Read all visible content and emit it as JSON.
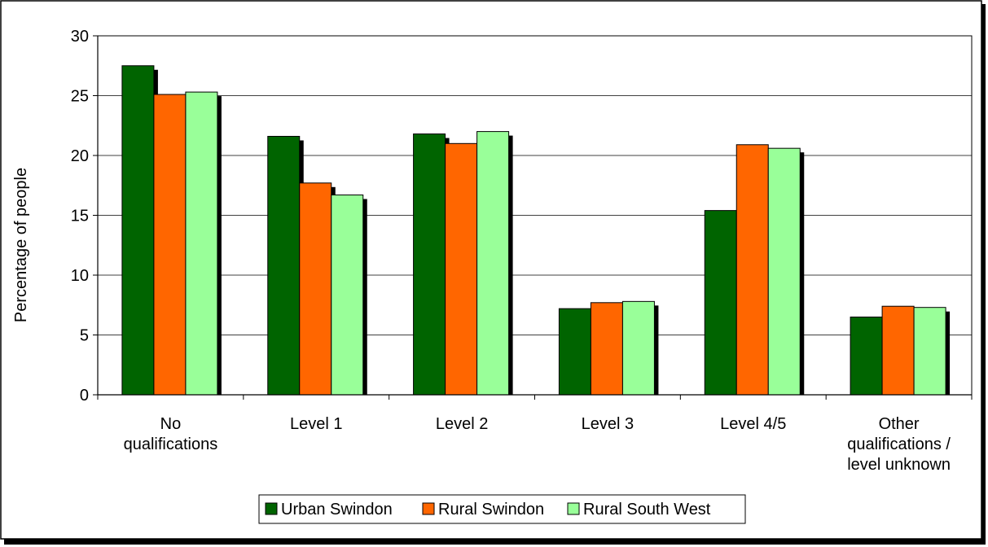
{
  "chart_data": {
    "type": "bar",
    "title": "",
    "xlabel": "",
    "ylabel": "Percentage of people",
    "ylim": [
      0,
      30
    ],
    "yticks": [
      0,
      5,
      10,
      15,
      20,
      25,
      30
    ],
    "grid": true,
    "legend_position": "bottom",
    "categories": [
      [
        "No",
        "qualifications"
      ],
      [
        "Level 1"
      ],
      [
        "Level 2"
      ],
      [
        "Level 3"
      ],
      [
        "Level 4/5"
      ],
      [
        "Other",
        "qualifications /",
        "level unknown"
      ]
    ],
    "series": [
      {
        "name": "Urban Swindon",
        "color": "#006400",
        "values": [
          27.5,
          21.6,
          21.8,
          7.2,
          15.4,
          6.5
        ]
      },
      {
        "name": "Rural Swindon",
        "color": "#ff6600",
        "values": [
          25.1,
          17.7,
          21.0,
          7.7,
          20.9,
          7.4
        ]
      },
      {
        "name": "Rural South West",
        "color": "#99ff99",
        "values": [
          25.3,
          16.7,
          22.0,
          7.8,
          20.6,
          7.3
        ]
      }
    ]
  }
}
